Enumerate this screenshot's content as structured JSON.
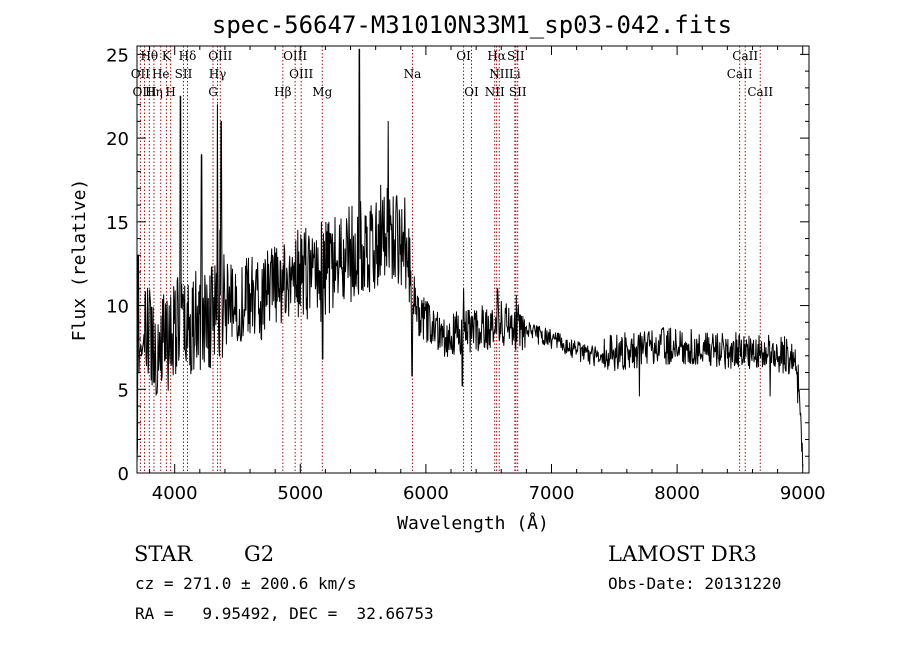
{
  "chart_data": {
    "type": "line",
    "title": "spec-56647-M31010N33M1_sp03-042.fits",
    "xlabel": "Wavelength (Å)",
    "ylabel": "Flux (relative)",
    "xlim": [
      3700,
      9050
    ],
    "ylim": [
      0,
      25.5
    ],
    "x_ticks": [
      4000,
      5000,
      6000,
      7000,
      8000,
      9000
    ],
    "y_ticks": [
      0,
      5,
      10,
      15,
      20,
      25
    ],
    "x_tick_labels": [
      "4000",
      "5000",
      "6000",
      "7000",
      "8000",
      "9000"
    ],
    "y_tick_labels": [
      "0",
      "5",
      "10",
      "15",
      "20",
      "25"
    ],
    "series": [
      {
        "name": "flux",
        "anchors_x": [
          3700,
          3720,
          3760,
          3800,
          3850,
          3900,
          3950,
          4000,
          4050,
          4100,
          4200,
          4300,
          4400,
          4500,
          4600,
          4700,
          4800,
          4900,
          5000,
          5100,
          5200,
          5300,
          5400,
          5500,
          5600,
          5700,
          5800,
          5880,
          5920,
          6000,
          6100,
          6200,
          6300,
          6400,
          6500,
          6600,
          6700,
          6800,
          6900,
          7000,
          7100,
          7200,
          7300,
          7400,
          7500,
          7600,
          7700,
          7800,
          7900,
          8000,
          8100,
          8200,
          8300,
          8400,
          8500,
          8600,
          8700,
          8800,
          8900,
          8960,
          9000
        ],
        "anchors_y": [
          0.5,
          7.0,
          8.0,
          8.5,
          7.5,
          8.0,
          8.0,
          9.0,
          8.5,
          8.5,
          9.0,
          9.5,
          10.0,
          10.0,
          10.5,
          10.5,
          11.0,
          11.5,
          11.5,
          12.0,
          12.0,
          12.5,
          13.0,
          13.5,
          14.0,
          14.5,
          14.0,
          13.0,
          9.5,
          9.0,
          8.5,
          8.2,
          8.3,
          8.5,
          8.8,
          9.0,
          8.8,
          8.5,
          8.2,
          8.0,
          7.6,
          7.3,
          7.0,
          7.0,
          7.2,
          7.3,
          7.4,
          7.5,
          7.6,
          7.6,
          7.5,
          7.4,
          7.4,
          7.3,
          7.3,
          7.2,
          7.2,
          7.1,
          7.0,
          6.5,
          0.5
        ],
        "spikes_x": [
          3710,
          4045,
          4215,
          4340,
          4360,
          4370,
          4980,
          5177,
          5470,
          5700,
          5890,
          6290,
          6300,
          6480,
          6570,
          6720,
          7700,
          8740,
          8960
        ],
        "spikes_y": [
          13.0,
          22.5,
          19.0,
          22.0,
          14.5,
          21.0,
          14.5,
          6.8,
          25.3,
          21.0,
          5.8,
          5.2,
          11.0,
          7.8,
          11.0,
          10.6,
          4.6,
          4.6,
          4.2
        ]
      }
    ],
    "line_markers": [
      {
        "label": "Hθ",
        "x": 3798,
        "row": 0
      },
      {
        "label": "K",
        "x": 3934,
        "row": 0
      },
      {
        "label": "Hδ",
        "x": 4102,
        "row": 0
      },
      {
        "label": "OIII",
        "x": 4363,
        "row": 0
      },
      {
        "label": "OIII",
        "x": 4959,
        "row": 0
      },
      {
        "label": "OI",
        "x": 6300,
        "row": 0
      },
      {
        "label": "Hα",
        "x": 6563,
        "row": 0
      },
      {
        "label": "SII",
        "x": 6716,
        "row": 0
      },
      {
        "label": "CaII",
        "x": 8542,
        "row": 0
      },
      {
        "label": "OII",
        "x": 3727,
        "row": 1
      },
      {
        "label": "He",
        "x": 3889,
        "row": 1
      },
      {
        "label": "SII",
        "x": 4070,
        "row": 1
      },
      {
        "label": "Hγ",
        "x": 4341,
        "row": 1
      },
      {
        "label": "OIII",
        "x": 5007,
        "row": 1
      },
      {
        "label": "NII",
        "x": 6584,
        "row": 1
      },
      {
        "label": "Li",
        "x": 6708,
        "row": 1
      },
      {
        "label": "CaII",
        "x": 8498,
        "row": 1
      },
      {
        "label": "OIII",
        "x": 3760,
        "row": 2
      },
      {
        "label": "Hη",
        "x": 3835,
        "row": 2
      },
      {
        "label": "H",
        "x": 3968,
        "row": 2
      },
      {
        "label": "G",
        "x": 4305,
        "row": 2
      },
      {
        "label": "Hβ",
        "x": 4861,
        "row": 2
      },
      {
        "label": "Mg",
        "x": 5175,
        "row": 2
      },
      {
        "label": "Na",
        "x": 5893,
        "row": 1
      },
      {
        "label": "OI",
        "x": 6363,
        "row": 2
      },
      {
        "label": "NII",
        "x": 6548,
        "row": 2
      },
      {
        "label": "SII",
        "x": 6731,
        "row": 2
      },
      {
        "label": "CaII",
        "x": 8662,
        "row": 2
      }
    ]
  },
  "info": {
    "object_class": "STAR",
    "subclass": "G2",
    "survey": "LAMOST DR3",
    "redshift_line": "cz = 271.0 ± 200.6 km/s",
    "obs_date_line": "Obs-Date: 20131220",
    "coords_line": "RA =   9.95492, DEC =  32.66753"
  }
}
